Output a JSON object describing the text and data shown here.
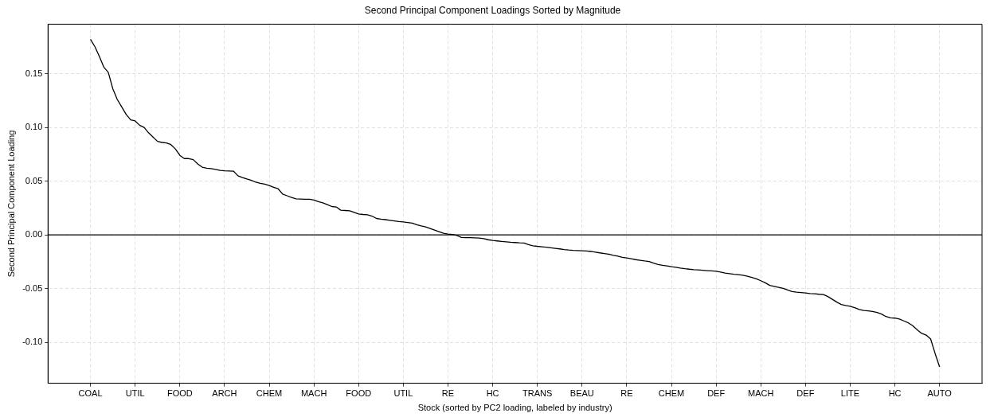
{
  "chart_data": {
    "type": "line",
    "title": "Second Principal Component Loadings Sorted by Magnitude",
    "xlabel": "Stock (sorted by PC2 loading, labeled by industry)",
    "ylabel": "Second Principal Component Loading",
    "categories": [
      "COAL",
      null,
      null,
      null,
      null,
      null,
      null,
      null,
      null,
      null,
      "UTIL",
      null,
      null,
      null,
      null,
      null,
      null,
      null,
      null,
      null,
      "FOOD",
      null,
      null,
      null,
      null,
      null,
      null,
      null,
      null,
      null,
      "ARCH",
      null,
      null,
      null,
      null,
      null,
      null,
      null,
      null,
      null,
      "CHEM",
      null,
      null,
      null,
      null,
      null,
      null,
      null,
      null,
      null,
      "MACH",
      null,
      null,
      null,
      null,
      null,
      null,
      null,
      null,
      null,
      "FOOD",
      null,
      null,
      null,
      null,
      null,
      null,
      null,
      null,
      null,
      "UTIL",
      null,
      null,
      null,
      null,
      null,
      null,
      null,
      null,
      null,
      "RE",
      null,
      null,
      null,
      null,
      null,
      null,
      null,
      null,
      null,
      "HC",
      null,
      null,
      null,
      null,
      null,
      null,
      null,
      null,
      null,
      "TRANS",
      null,
      null,
      null,
      null,
      null,
      null,
      null,
      null,
      null,
      "BEAU",
      null,
      null,
      null,
      null,
      null,
      null,
      null,
      null,
      null,
      "RE",
      null,
      null,
      null,
      null,
      null,
      null,
      null,
      null,
      null,
      "CHEM",
      null,
      null,
      null,
      null,
      null,
      null,
      null,
      null,
      null,
      "DEF",
      null,
      null,
      null,
      null,
      null,
      null,
      null,
      null,
      null,
      "MACH",
      null,
      null,
      null,
      null,
      null,
      null,
      null,
      null,
      null,
      "DEF",
      null,
      null,
      null,
      null,
      null,
      null,
      null,
      null,
      null,
      "LITE",
      null,
      null,
      null,
      null,
      null,
      null,
      null,
      null,
      null,
      "HC",
      null,
      null,
      null,
      null,
      null,
      null,
      null,
      null,
      null,
      "AUTO"
    ],
    "series": [
      {
        "color": "#000000",
        "values": [
          0.182,
          0.175,
          0.166,
          0.156,
          0.151,
          0.136,
          0.126,
          0.119,
          0.112,
          0.107,
          0.106,
          0.102,
          0.1,
          0.095,
          0.091,
          0.087,
          0.086,
          0.0855,
          0.084,
          0.08,
          0.074,
          0.071,
          0.071,
          0.07,
          0.066,
          0.063,
          0.062,
          0.0616,
          0.061,
          0.06,
          0.0597,
          0.0595,
          0.0593,
          0.055,
          0.0534,
          0.052,
          0.0508,
          0.049,
          0.048,
          0.0472,
          0.046,
          0.0443,
          0.0429,
          0.038,
          0.0364,
          0.0348,
          0.0335,
          0.0334,
          0.0332,
          0.0331,
          0.0325,
          0.031,
          0.0299,
          0.0282,
          0.0264,
          0.026,
          0.023,
          0.0227,
          0.0224,
          0.021,
          0.0195,
          0.019,
          0.0187,
          0.0175,
          0.0153,
          0.0147,
          0.0142,
          0.0136,
          0.013,
          0.0124,
          0.012,
          0.0115,
          0.011,
          0.0095,
          0.0083,
          0.0074,
          0.006,
          0.0045,
          0.003,
          0.0016,
          0.0008,
          0.0004,
          -0.0006,
          -0.0023,
          -0.0025,
          -0.0026,
          -0.0027,
          -0.0029,
          -0.0035,
          -0.0045,
          -0.0052,
          -0.0056,
          -0.006,
          -0.0064,
          -0.0068,
          -0.0071,
          -0.0074,
          -0.0076,
          -0.0091,
          -0.0101,
          -0.0106,
          -0.011,
          -0.0115,
          -0.012,
          -0.0125,
          -0.013,
          -0.0136,
          -0.0141,
          -0.0144,
          -0.0146,
          -0.0148,
          -0.015,
          -0.0154,
          -0.016,
          -0.0167,
          -0.0173,
          -0.018,
          -0.019,
          -0.0198,
          -0.0208,
          -0.0215,
          -0.0222,
          -0.023,
          -0.0236,
          -0.0242,
          -0.0247,
          -0.0263,
          -0.0275,
          -0.0282,
          -0.0288,
          -0.0295,
          -0.0301,
          -0.0308,
          -0.0314,
          -0.0319,
          -0.0323,
          -0.0326,
          -0.0329,
          -0.0332,
          -0.0335,
          -0.0338,
          -0.0346,
          -0.0355,
          -0.036,
          -0.0366,
          -0.037,
          -0.0375,
          -0.0384,
          -0.0396,
          -0.0408,
          -0.0426,
          -0.0446,
          -0.047,
          -0.0479,
          -0.0488,
          -0.0498,
          -0.0512,
          -0.0527,
          -0.0532,
          -0.0536,
          -0.054,
          -0.0545,
          -0.0548,
          -0.0552,
          -0.0555,
          -0.0573,
          -0.0599,
          -0.0625,
          -0.0647,
          -0.0657,
          -0.0664,
          -0.0677,
          -0.0694,
          -0.0703,
          -0.0707,
          -0.0712,
          -0.0721,
          -0.0736,
          -0.0759,
          -0.0771,
          -0.0774,
          -0.0783,
          -0.08,
          -0.0818,
          -0.0845,
          -0.0883,
          -0.0916,
          -0.0932,
          -0.0968,
          -0.1103,
          -0.1228
        ]
      }
    ],
    "ylim": [
      -0.138,
      0.196
    ],
    "yticks": [
      {
        "value": -0.1,
        "label": "-0.10"
      },
      {
        "value": -0.05,
        "label": "-0.05"
      },
      {
        "value": 0,
        "label": "0.00"
      },
      {
        "value": 0.05,
        "label": "0.05"
      },
      {
        "value": 0.1,
        "label": "0.10"
      },
      {
        "value": 0.15,
        "label": "0.15"
      }
    ],
    "ref_lines": [
      {
        "axis": "y",
        "value": 0,
        "color": "#000000"
      }
    ],
    "grid": true,
    "legend": false,
    "marker": "none",
    "line_style": "solid"
  }
}
